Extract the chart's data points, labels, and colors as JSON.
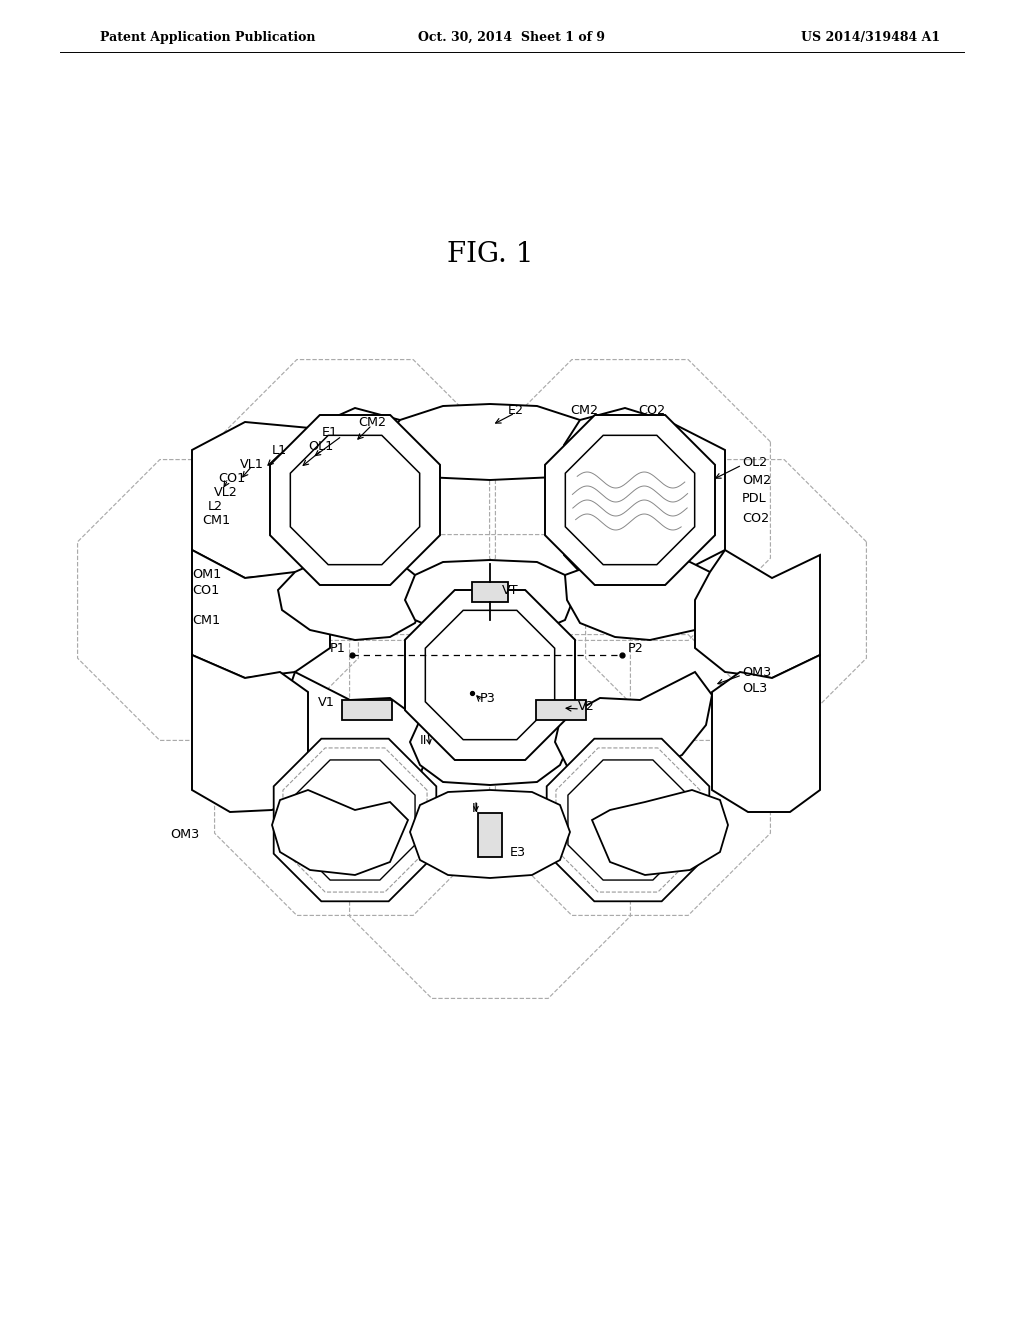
{
  "header_left": "Patent Application Publication",
  "header_center": "Oct. 30, 2014  Sheet 1 of 9",
  "header_right": "US 2014/319484 A1",
  "fig_title": "FIG. 1",
  "bg_color": "#ffffff"
}
